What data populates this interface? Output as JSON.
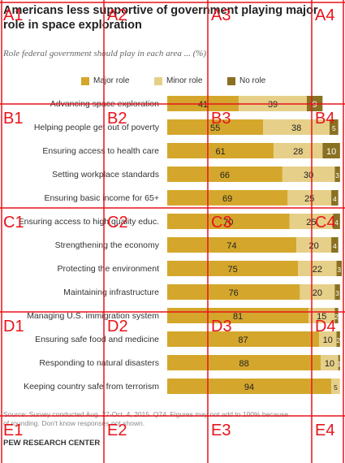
{
  "header": {
    "title": "Americans less supportive of government playing major role in space exploration",
    "subtitle": "Role federal government should play in each area ... (%)"
  },
  "legend": [
    {
      "label": "Major role",
      "color": "#d4a72c"
    },
    {
      "label": "Minor role",
      "color": "#e6cf88"
    },
    {
      "label": "No role",
      "color": "#8a7021"
    }
  ],
  "footer": {
    "note_line1": "Source: Survey conducted Aug. 27-Oct. 4, 2015. Q74. Figures may not add to 100% because",
    "note_line2": "of rounding. Don't know responses not shown.",
    "brand": "PEW RESEARCH CENTER"
  },
  "overlay": {
    "color": "#e8141c",
    "labels": [
      "A1",
      "A2",
      "A3",
      "A4",
      "B1",
      "B2",
      "B3",
      "B4",
      "C1",
      "C2",
      "C3",
      "C4",
      "D1",
      "D2",
      "D3",
      "D4",
      "E1",
      "E2",
      "E3",
      "E4"
    ]
  },
  "chart_data": {
    "type": "bar",
    "orientation": "horizontal",
    "stacked": true,
    "title": "Americans less supportive of government playing major role in space exploration",
    "subtitle": "Role federal government should play in each area ... (%)",
    "categories": [
      "Advancing space exploration",
      "Helping people get out of poverty",
      "Ensuring access to health care",
      "Setting workplace standards",
      "Ensuring basic income for 65+",
      "Ensuring access to high quality educ.",
      "Strengthening the economy",
      "Protecting the environment",
      "Maintaining infrastructure",
      "Managing U.S. immigration system",
      "Ensuring safe food and medicine",
      "Responding to natural disasters",
      "Keeping country safe from terrorism"
    ],
    "series": [
      {
        "name": "Major role",
        "color": "#d4a72c",
        "values": [
          41,
          55,
          61,
          66,
          69,
          70,
          74,
          75,
          76,
          81,
          87,
          88,
          94
        ]
      },
      {
        "name": "Minor role",
        "color": "#e6cf88",
        "values": [
          39,
          38,
          28,
          30,
          25,
          25,
          20,
          22,
          20,
          15,
          10,
          10,
          5
        ]
      },
      {
        "name": "No role",
        "color": "#8a7021",
        "values": [
          9,
          5,
          10,
          3,
          4,
          4,
          4,
          3,
          3,
          2,
          2,
          1,
          0
        ]
      }
    ],
    "xlim": [
      0,
      100
    ],
    "legend_position": "top",
    "grid": false
  }
}
